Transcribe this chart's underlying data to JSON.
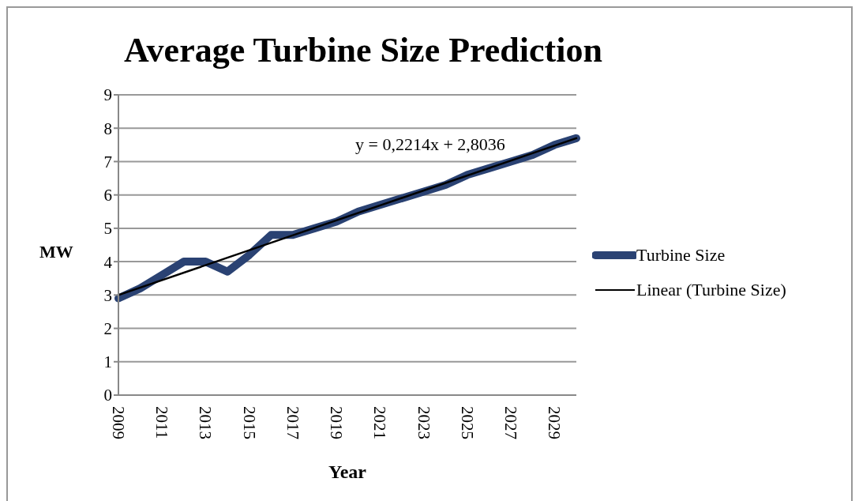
{
  "chart_data": {
    "type": "line",
    "title": "Average Turbine Size Prediction",
    "xlabel": "Year",
    "ylabel": "MW",
    "categories": [
      "2009",
      null,
      "2011",
      null,
      "2013",
      null,
      "2015",
      null,
      "2017",
      null,
      "2019",
      null,
      "2021",
      null,
      "2023",
      null,
      "2025",
      null,
      "2027",
      null,
      "2029",
      null
    ],
    "series": [
      {
        "name": "Turbine Size",
        "color": "#2a4273",
        "values": [
          2.9,
          3.2,
          3.6,
          4.0,
          4.0,
          3.7,
          4.2,
          4.8,
          4.8,
          5.0,
          5.2,
          5.5,
          5.7,
          5.9,
          6.1,
          6.3,
          6.6,
          6.8,
          7.0,
          7.2,
          7.5,
          7.7
        ]
      },
      {
        "name": "Linear (Turbine Size)",
        "type": "line",
        "color": "#000000",
        "values": [
          3.0,
          null,
          null,
          null,
          null,
          null,
          null,
          null,
          null,
          null,
          null,
          null,
          null,
          null,
          null,
          null,
          null,
          null,
          null,
          null,
          null,
          7.7
        ]
      }
    ],
    "annotations": [
      "y = 0,2214x + 2,8036"
    ],
    "ylim": [
      0,
      9
    ],
    "yticks": [
      0,
      1,
      2,
      3,
      4,
      5,
      6,
      7,
      8,
      9
    ],
    "grid": "y",
    "legend": "right",
    "marker": "none",
    "line_style": "solid"
  }
}
